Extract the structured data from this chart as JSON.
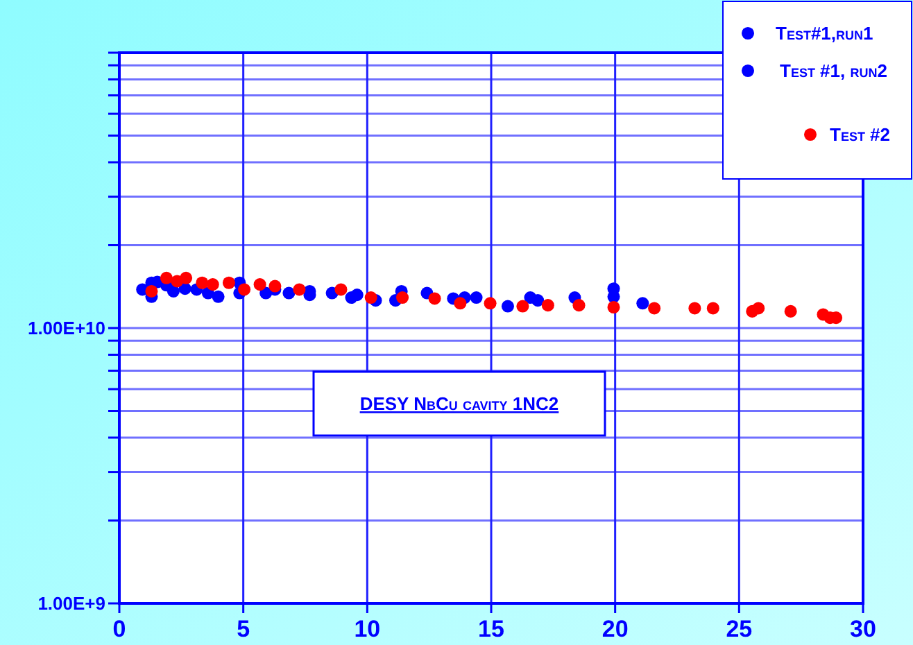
{
  "chart_data": {
    "type": "scatter",
    "log": "y",
    "grid": true,
    "legend": "top right",
    "marker": "circle",
    "xlim": [
      0,
      30
    ],
    "xticks": [
      0,
      5,
      10,
      15,
      20,
      25,
      30
    ],
    "ylim": [
      1000000000.0,
      100000000000.0
    ],
    "yticks": [
      {
        "value": 1000000000.0,
        "label": "1.00E+9"
      },
      {
        "value": 2000000000.0,
        "label": null
      },
      {
        "value": 3000000000.0,
        "label": null
      },
      {
        "value": 4000000000.0,
        "label": null
      },
      {
        "value": 5000000000.0,
        "label": null
      },
      {
        "value": 6000000000.0,
        "label": null
      },
      {
        "value": 7000000000.0,
        "label": null
      },
      {
        "value": 8000000000.0,
        "label": null
      },
      {
        "value": 9000000000.0,
        "label": null
      },
      {
        "value": 10000000000.0,
        "label": "1.00E+10"
      },
      {
        "value": 20000000000.0,
        "label": null
      },
      {
        "value": 30000000000.0,
        "label": null
      },
      {
        "value": 40000000000.0,
        "label": null
      },
      {
        "value": 50000000000.0,
        "label": null
      },
      {
        "value": 60000000000.0,
        "label": null
      },
      {
        "value": 70000000000.0,
        "label": null
      },
      {
        "value": 80000000000.0,
        "label": null
      },
      {
        "value": 90000000000.0,
        "label": null
      },
      {
        "value": 100000000000.0,
        "label": null
      }
    ],
    "annotations": [
      "DESY NbCu cavity 1NC2"
    ],
    "series": [
      {
        "name": "Test#1,run1",
        "color": "#0000ff",
        "x": [
          0.93,
          1.3,
          1.3,
          1.53,
          1.9,
          2.18,
          2.65,
          3.12,
          3.58,
          3.99,
          4.85,
          4.85,
          5.91,
          6.28,
          6.84,
          7.68,
          7.68,
          8.58,
          9.36,
          9.59
        ],
        "values": [
          13800000000.0,
          14600000000.0,
          13000000000.0,
          14700000000.0,
          14300000000.0,
          13600000000.0,
          13900000000.0,
          13800000000.0,
          13400000000.0,
          13000000000.0,
          14600000000.0,
          13400000000.0,
          13400000000.0,
          13800000000.0,
          13400000000.0,
          13600000000.0,
          13200000000.0,
          13400000000.0,
          12900000000.0,
          13200000000.0
        ]
      },
      {
        "name": "Test #1, run2",
        "color": "#0000ff",
        "x": [
          10.34,
          11.14,
          11.38,
          12.41,
          13.47,
          13.93,
          14.4,
          15.67,
          16.58,
          16.88,
          18.37,
          19.94,
          19.94,
          21.11
        ],
        "values": [
          12600000000.0,
          12600000000.0,
          13600000000.0,
          13400000000.0,
          12800000000.0,
          12900000000.0,
          12900000000.0,
          12000000000.0,
          12900000000.0,
          12600000000.0,
          12900000000.0,
          13000000000.0,
          13900000000.0,
          12300000000.0
        ]
      },
      {
        "name": "Test #2",
        "color": "#ff0000",
        "x": [
          1.3,
          1.9,
          2.33,
          2.69,
          3.34,
          3.77,
          4.42,
          5.04,
          5.67,
          6.28,
          7.26,
          8.94,
          10.15,
          11.42,
          12.72,
          13.75,
          14.96,
          16.27,
          17.29,
          18.54,
          19.94,
          21.58,
          23.21,
          23.95,
          25.53,
          25.78,
          27.08,
          28.39,
          28.67,
          28.91
        ],
        "values": [
          13600000000.0,
          15200000000.0,
          14800000000.0,
          15200000000.0,
          14600000000.0,
          14400000000.0,
          14600000000.0,
          13800000000.0,
          14400000000.0,
          14200000000.0,
          13800000000.0,
          13800000000.0,
          12900000000.0,
          12900000000.0,
          12800000000.0,
          12300000000.0,
          12300000000.0,
          12000000000.0,
          12100000000.0,
          12100000000.0,
          11900000000.0,
          11800000000.0,
          11800000000.0,
          11800000000.0,
          11500000000.0,
          11800000000.0,
          11500000000.0,
          11200000000.0,
          10900000000.0,
          10900000000.0
        ]
      }
    ]
  }
}
